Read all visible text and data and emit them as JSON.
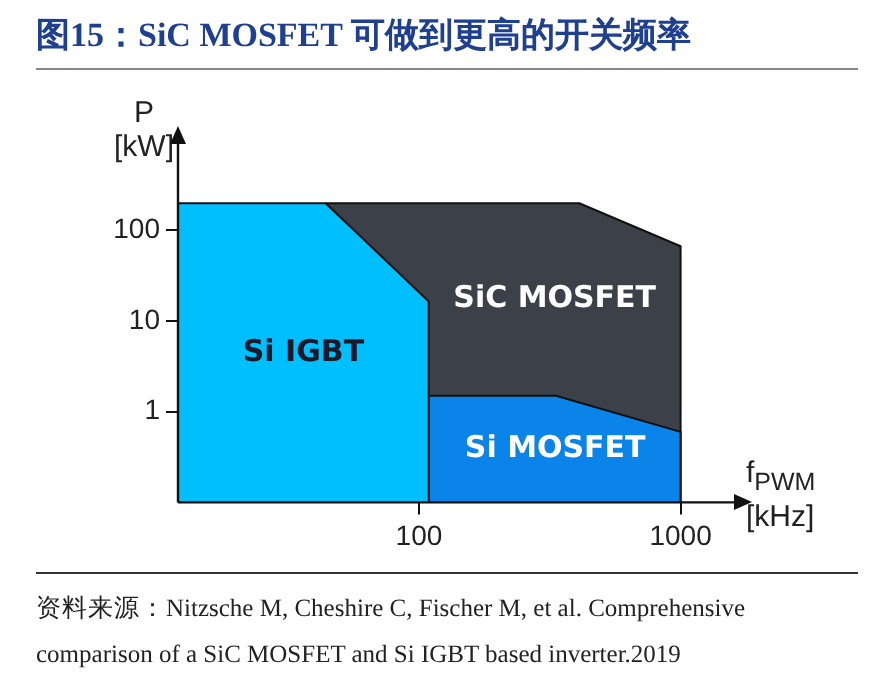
{
  "chart_data": {
    "type": "area",
    "title": "图15：SiC MOSFET 可做到更高的开关频率",
    "xlabel": "f$_{PWM}$ [kHz]",
    "ylabel": "P [kW]",
    "log": "xy",
    "xlim": [
      12,
      1600
    ],
    "ylim": [
      0.1,
      900
    ],
    "xticks": [
      100,
      1000
    ],
    "yticks": [
      1,
      10,
      100
    ],
    "grid": false,
    "legend": false,
    "marker": "none",
    "line_style": "solid",
    "series": [
      {
        "name": "SiC MOSFET",
        "color": "#3c4048",
        "x": [
          44,
          410,
          1000,
          1000
        ],
        "values": [
          200,
          200,
          67,
          0.1
        ]
      },
      {
        "name": "Si IGBT",
        "color": "#00bfff",
        "x": [
          12,
          44,
          109,
          109
        ],
        "values": [
          200,
          200,
          16.5,
          0.1
        ]
      },
      {
        "name": "Si MOSFET",
        "color": "#0a84e8",
        "x": [
          110,
          334,
          1000,
          1000
        ],
        "values": [
          1.5,
          1.5,
          0.6,
          0.1
        ]
      }
    ],
    "annotations": [
      "资料来源：Nitzsche M, Cheshire C, Fischer M, et al. Comprehensive comparison of a SiC MOSFET and Si IGBT based inverter.2019"
    ]
  }
}
